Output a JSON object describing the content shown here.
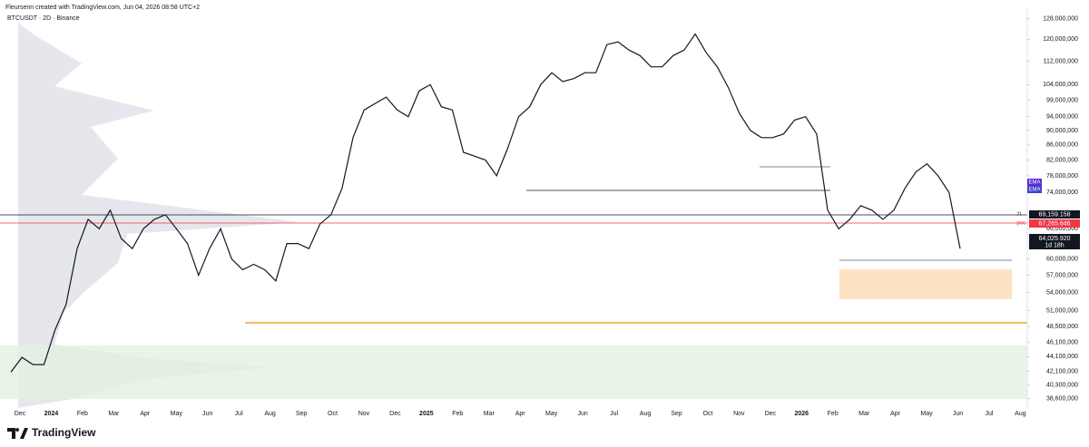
{
  "header": {
    "credit": "Fleursenn created with TradingView.com, Jun 04, 2026 08:58 UTC+2"
  },
  "chart_data": {
    "type": "line",
    "title": "BTCUSDT · 2D · Binance",
    "log_scale": true,
    "color": "#131722",
    "ylim": [
      37500000,
      132000000
    ],
    "yticks": [
      {
        "value": 128000000,
        "label": "128,000,000"
      },
      {
        "value": 120000000,
        "label": "120,000,000"
      },
      {
        "value": 112000000,
        "label": "112,000,000"
      },
      {
        "value": 104000000,
        "label": "104,000,000"
      },
      {
        "value": 99000000,
        "label": "99,000,000"
      },
      {
        "value": 94000000,
        "label": "94,000,000"
      },
      {
        "value": 90000000,
        "label": "90,000,000"
      },
      {
        "value": 86000000,
        "label": "86,000,000"
      },
      {
        "value": 82000000,
        "label": "82,000,000"
      },
      {
        "value": 78000000,
        "label": "78,000,000"
      },
      {
        "value": 74000000,
        "label": "74,000,000"
      },
      {
        "value": 66000000,
        "label": "66,000,000"
      },
      {
        "value": 60000000,
        "label": "60,000,000"
      },
      {
        "value": 57000000,
        "label": "57,000,000"
      },
      {
        "value": 54000000,
        "label": "54,000,000"
      },
      {
        "value": 51000000,
        "label": "51,000,000"
      },
      {
        "value": 48500000,
        "label": "48,500,000"
      },
      {
        "value": 46100000,
        "label": "46,100,000"
      },
      {
        "value": 44100000,
        "label": "44,100,000"
      },
      {
        "value": 42100000,
        "label": "42,100,000"
      },
      {
        "value": 40300000,
        "label": "40,300,000"
      },
      {
        "value": 38600000,
        "label": "38,600,000"
      }
    ],
    "time_labels": [
      "Dec",
      "2024",
      "Feb",
      "Mar",
      "Apr",
      "May",
      "Jun",
      "Jul",
      "Aug",
      "Sep",
      "Oct",
      "Nov",
      "Dec",
      "2025",
      "Feb",
      "Mar",
      "Apr",
      "May",
      "Jun",
      "Jul",
      "Aug",
      "Sep",
      "Oct",
      "Nov",
      "Dec",
      "2026",
      "Feb",
      "Mar",
      "Apr",
      "May",
      "Jun",
      "Jul",
      "Aug"
    ],
    "values": [
      42000000,
      44000000,
      43000000,
      43000000,
      48000000,
      52000000,
      62000000,
      68000000,
      66000000,
      70000000,
      64000000,
      62000000,
      66000000,
      68000000,
      69000000,
      66000000,
      63000000,
      57000000,
      62000000,
      66000000,
      60000000,
      58000000,
      59000000,
      58000000,
      56000000,
      63000000,
      63000000,
      62000000,
      67000000,
      69000000,
      75000000,
      88000000,
      96000000,
      98000000,
      100000000,
      96000000,
      94000000,
      102000000,
      104000000,
      97000000,
      96000000,
      84000000,
      83000000,
      82000000,
      78000000,
      85000000,
      94000000,
      97000000,
      104000000,
      108000000,
      105000000,
      106000000,
      108000000,
      108000000,
      118000000,
      119000000,
      116000000,
      114000000,
      110000000,
      110000000,
      114000000,
      116000000,
      122000000,
      115000000,
      110000000,
      103000000,
      95000000,
      90000000,
      88000000,
      88000000,
      89000000,
      93000000,
      94000000,
      89000000,
      70000000,
      66000000,
      68000000,
      71000000,
      70000000,
      68000000,
      70000000,
      75000000,
      79000000,
      81000000,
      78000000,
      74000000,
      62000000
    ],
    "price_tags": [
      "69,159.158",
      "67,265.646",
      "64,025.920",
      "1d 18h"
    ],
    "annotations": [
      "21",
      "poc",
      "EMA",
      "EMA"
    ]
  },
  "footer": {
    "brand": "TradingView"
  }
}
